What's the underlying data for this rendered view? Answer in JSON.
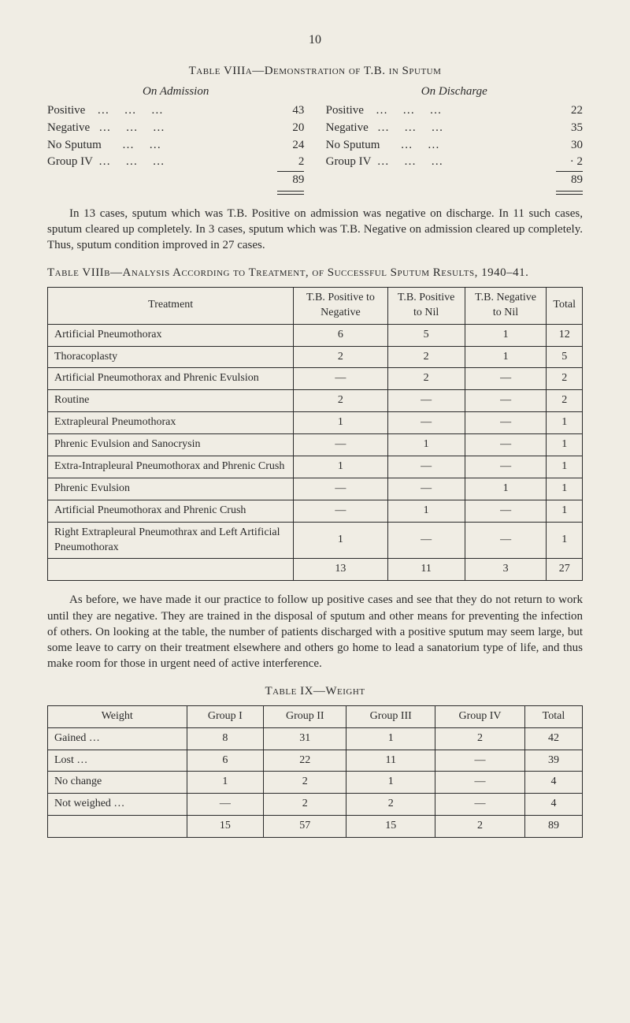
{
  "page_number": "10",
  "table8a": {
    "title": "Table VIIIa—Demonstration of T.B. in Sputum",
    "left_head": "On Admission",
    "right_head": "On Discharge",
    "labels": {
      "positive": "Positive",
      "negative": "Negative",
      "no_sputum": "No Sputum",
      "group4": "Group IV"
    },
    "admission": {
      "positive": "43",
      "negative": "20",
      "no_sputum": "24",
      "group4": "2",
      "total": "89"
    },
    "discharge": {
      "positive": "22",
      "negative": "35",
      "no_sputum": "30",
      "group4": "· 2",
      "total": "89"
    }
  },
  "para1": "In 13 cases, sputum which was T.B. Positive on admission was negative on discharge. In 11 such cases, sputum cleared up completely. In 3 cases, sputum which was T.B. Negative on admission cleared up completely. Thus, sputum condition improved in 27 cases.",
  "table8b": {
    "title": "Table VIIIb—Analysis According to Treatment, of Successful Sputum Results, 1940–41.",
    "headers": [
      "Treatment",
      "T.B. Positive to Negative",
      "T.B. Positive to Nil",
      "T.B. Negative to Nil",
      "Total"
    ],
    "rows": [
      [
        "Artificial Pneumothorax",
        "6",
        "5",
        "1",
        "12"
      ],
      [
        "Thoracoplasty",
        "2",
        "2",
        "1",
        "5"
      ],
      [
        "Artificial Pneumothorax and Phrenic Evulsion",
        "—",
        "2",
        "—",
        "2"
      ],
      [
        "Routine",
        "2",
        "—",
        "—",
        "2"
      ],
      [
        "Extrapleural Pneumothorax",
        "1",
        "—",
        "—",
        "1"
      ],
      [
        "Phrenic Evulsion and Sanocrysin",
        "—",
        "1",
        "—",
        "1"
      ],
      [
        "Extra-Intrapleural Pneumothorax and Phrenic Crush",
        "1",
        "—",
        "—",
        "1"
      ],
      [
        "Phrenic Evulsion",
        "—",
        "—",
        "1",
        "1"
      ],
      [
        "Artificial Pneumothorax and Phrenic Crush",
        "—",
        "1",
        "—",
        "1"
      ],
      [
        "Right Extrapleural Pneumothrax and Left Artificial Pneumothorax",
        "1",
        "—",
        "—",
        "1"
      ]
    ],
    "totals": [
      "",
      "13",
      "11",
      "3",
      "27"
    ]
  },
  "para2": "As before, we have made it our practice to follow up positive cases and see that they do not return to work until they are negative. They are trained in the disposal of sputum and other means for preventing the infection of others. On looking at the table, the number of patients discharged with a positive sputum may seem large, but some leave to carry on their treatment elsewhere and others go home to lead a sanatorium type of life, and thus make room for those in urgent need of active interference.",
  "table9": {
    "title": "Table IX—Weight",
    "headers": [
      "Weight",
      "Group I",
      "Group II",
      "Group III",
      "Group IV",
      "Total"
    ],
    "rows": [
      [
        "Gained …",
        "8",
        "31",
        "1",
        "2",
        "42"
      ],
      [
        "Lost …",
        "6",
        "22",
        "11",
        "—",
        "39"
      ],
      [
        "No change",
        "1",
        "2",
        "1",
        "—",
        "4"
      ],
      [
        "Not weighed …",
        "—",
        "2",
        "2",
        "—",
        "4"
      ]
    ],
    "totals": [
      "",
      "15",
      "57",
      "15",
      "2",
      "89"
    ]
  }
}
